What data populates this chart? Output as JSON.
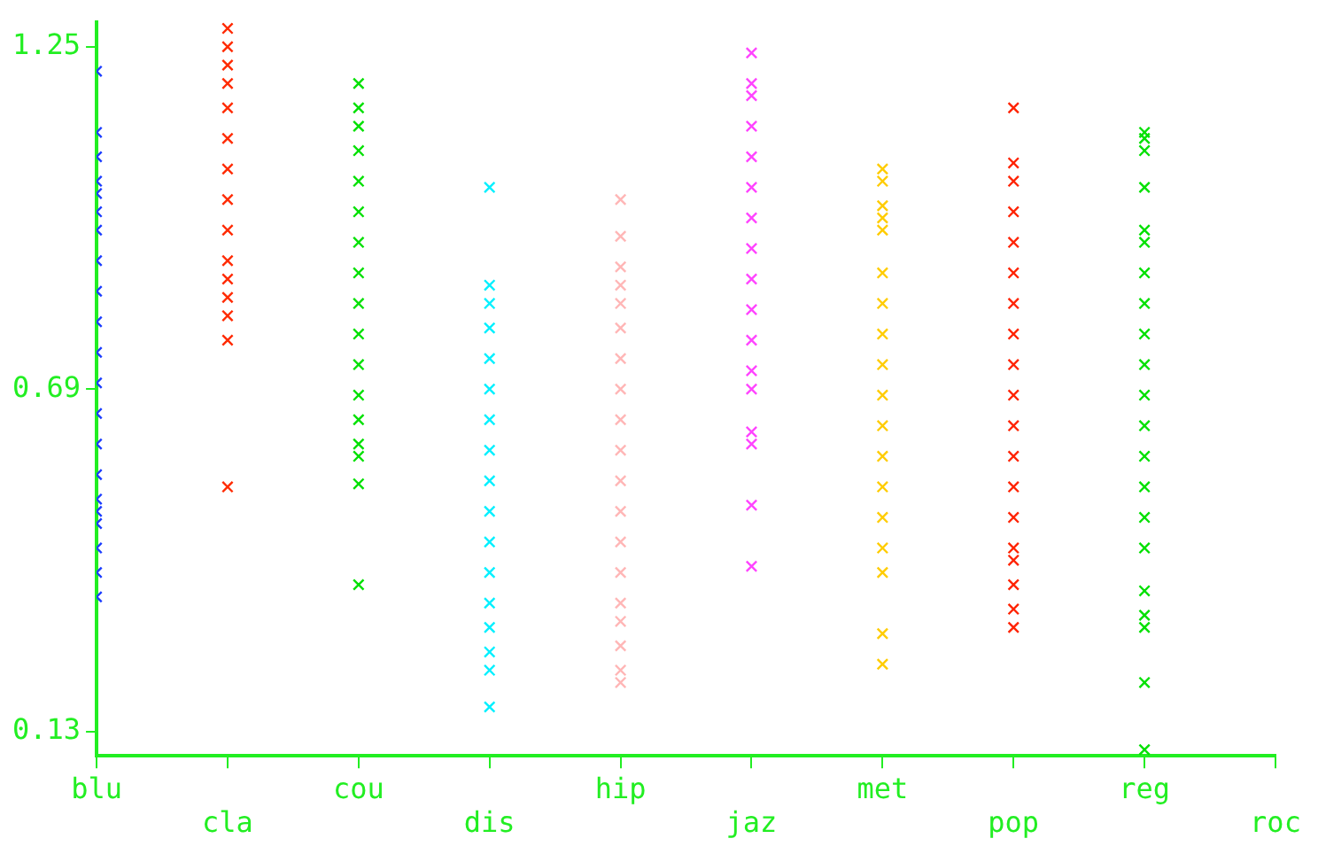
{
  "chart_data": {
    "type": "scatter",
    "categories": [
      "blu",
      "cla",
      "cou",
      "dis",
      "hip",
      "jaz",
      "met",
      "pop",
      "reg",
      "roc"
    ],
    "ylim": [
      0.09,
      1.29
    ],
    "yticks": [
      0.13,
      0.69,
      1.25
    ],
    "grid": false,
    "legend": false,
    "marker": "cross",
    "series": [
      {
        "color": "#1a3cff",
        "x": [
          "blu",
          "blu",
          "blu",
          "blu",
          "blu",
          "blu",
          "blu",
          "blu",
          "blu",
          "blu",
          "blu",
          "blu",
          "blu",
          "blu",
          "blu",
          "blu",
          "blu"
        ],
        "values": [
          1.21,
          1.11,
          1.07,
          1.03,
          1.01,
          0.98,
          0.95,
          0.9,
          0.85,
          0.8,
          0.75,
          0.7,
          0.65,
          0.6,
          0.55,
          0.51,
          0.49
        ]
      },
      {
        "color": "#1a3cff",
        "x": [
          "blu",
          "blu",
          "blu",
          "blu"
        ],
        "values": [
          0.47,
          0.43,
          0.39,
          0.35
        ]
      },
      {
        "color": "#ff2a00",
        "x": [
          "cla",
          "cla",
          "cla",
          "cla",
          "cla",
          "cla",
          "cla",
          "cla",
          "cla",
          "cla",
          "cla",
          "cla",
          "cla",
          "cla",
          "cla"
        ],
        "values": [
          1.28,
          1.25,
          1.22,
          1.19,
          1.15,
          1.1,
          1.05,
          1.0,
          0.95,
          0.9,
          0.87,
          0.84,
          0.81,
          0.77,
          0.53
        ]
      },
      {
        "color": "#00e000",
        "x": [
          "cou",
          "cou",
          "cou",
          "cou",
          "cou",
          "cou",
          "cou",
          "cou",
          "cou",
          "cou",
          "cou",
          "cou",
          "cou",
          "cou",
          "cou",
          "cou",
          "cou"
        ],
        "values": [
          1.19,
          1.15,
          1.12,
          1.08,
          1.03,
          0.98,
          0.93,
          0.88,
          0.83,
          0.78,
          0.73,
          0.68,
          0.64,
          0.6,
          0.58,
          0.535,
          0.37
        ]
      },
      {
        "color": "#00f0ff",
        "x": [
          "dis",
          "dis",
          "dis",
          "dis",
          "dis",
          "dis",
          "dis",
          "dis",
          "dis",
          "dis",
          "dis",
          "dis",
          "dis",
          "dis",
          "dis",
          "dis",
          "dis"
        ],
        "values": [
          1.02,
          0.86,
          0.83,
          0.79,
          0.74,
          0.69,
          0.64,
          0.59,
          0.54,
          0.49,
          0.44,
          0.39,
          0.34,
          0.3,
          0.26,
          0.23,
          0.17
        ]
      },
      {
        "color": "#ffb6b6",
        "x": [
          "hip",
          "hip",
          "hip",
          "hip",
          "hip",
          "hip",
          "hip",
          "hip",
          "hip",
          "hip",
          "hip",
          "hip",
          "hip",
          "hip",
          "hip",
          "hip",
          "hip",
          "hip",
          "hip"
        ],
        "values": [
          1.0,
          0.94,
          0.89,
          0.86,
          0.83,
          0.79,
          0.74,
          0.69,
          0.64,
          0.59,
          0.54,
          0.49,
          0.44,
          0.39,
          0.34,
          0.31,
          0.27,
          0.23,
          0.21
        ]
      },
      {
        "color": "#ff44ff",
        "x": [
          "jaz",
          "jaz",
          "jaz",
          "jaz",
          "jaz",
          "jaz",
          "jaz",
          "jaz",
          "jaz",
          "jaz",
          "jaz",
          "jaz",
          "jaz",
          "jaz",
          "jaz",
          "jaz",
          "jaz"
        ],
        "values": [
          1.24,
          1.19,
          1.17,
          1.12,
          1.07,
          1.02,
          0.97,
          0.92,
          0.87,
          0.82,
          0.77,
          0.72,
          0.69,
          0.62,
          0.6,
          0.5,
          0.4
        ]
      },
      {
        "color": "#ffcc00",
        "x": [
          "met",
          "met",
          "met",
          "met",
          "met",
          "met",
          "met",
          "met",
          "met",
          "met",
          "met",
          "met",
          "met",
          "met",
          "met",
          "met",
          "met",
          "met"
        ],
        "values": [
          1.05,
          1.03,
          0.99,
          0.97,
          0.95,
          0.88,
          0.83,
          0.78,
          0.73,
          0.68,
          0.63,
          0.58,
          0.53,
          0.48,
          0.43,
          0.39,
          0.29,
          0.24
        ]
      },
      {
        "color": "#ff2200",
        "x": [
          "pop",
          "pop",
          "pop",
          "pop",
          "pop",
          "pop",
          "pop",
          "pop",
          "pop",
          "pop",
          "pop",
          "pop",
          "pop",
          "pop",
          "pop",
          "pop",
          "pop",
          "pop",
          "pop"
        ],
        "values": [
          1.15,
          1.06,
          1.03,
          0.98,
          0.93,
          0.88,
          0.83,
          0.78,
          0.73,
          0.68,
          0.63,
          0.58,
          0.53,
          0.48,
          0.43,
          0.41,
          0.37,
          0.33,
          0.3
        ]
      },
      {
        "color": "#00e000",
        "x": [
          "reg",
          "reg",
          "reg",
          "reg",
          "reg",
          "reg",
          "reg",
          "reg",
          "reg",
          "reg",
          "reg",
          "reg",
          "reg",
          "reg",
          "reg",
          "reg",
          "reg",
          "reg",
          "reg",
          "reg",
          "reg"
        ],
        "values": [
          1.11,
          1.1,
          1.08,
          1.02,
          0.95,
          0.93,
          0.88,
          0.83,
          0.78,
          0.73,
          0.68,
          0.63,
          0.58,
          0.53,
          0.48,
          0.43,
          0.36,
          0.32,
          0.3,
          0.21,
          0.1
        ]
      }
    ]
  }
}
